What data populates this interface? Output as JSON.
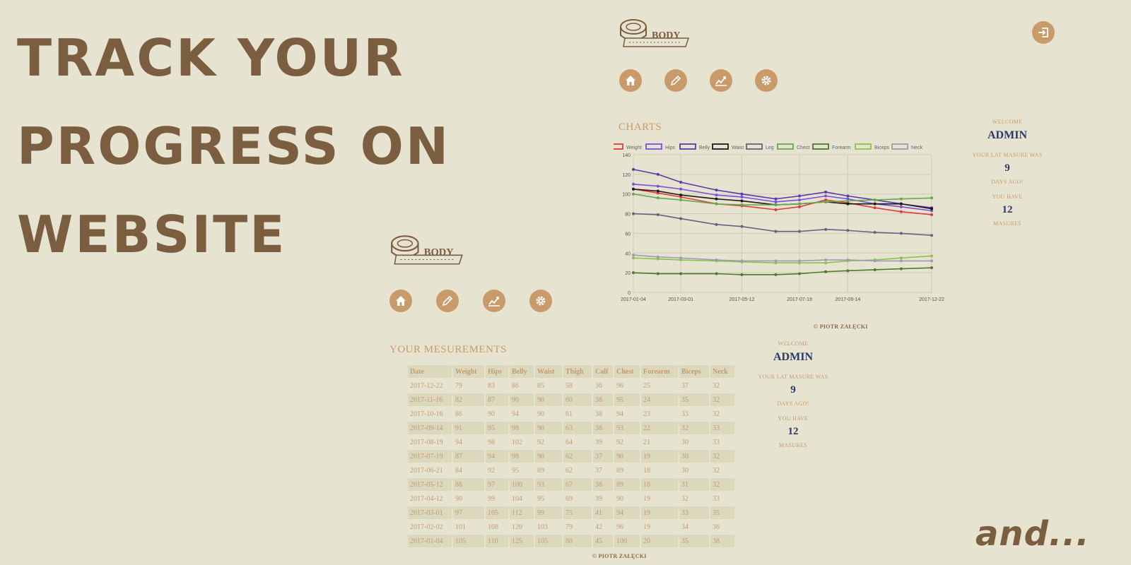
{
  "hero": {
    "line1": "TRACK YOUR",
    "line2": "PROGRESS ON",
    "line3": "WEBSITE",
    "tail": "and..."
  },
  "logo": {
    "word1": "BODY",
    "word2": "MEASURES"
  },
  "nav_icons": [
    "home-icon",
    "pencil-icon",
    "chart-icon",
    "gear-icon"
  ],
  "colors": {
    "accent": "#c99a6a",
    "brand": "#7b5d40",
    "navy": "#2a3a66",
    "background": "#e6e3d0"
  },
  "charts_page": {
    "title": "CHARTS",
    "footer": "© PIOTR ZAŁĘCKI",
    "info": {
      "welcome": "WELCOME",
      "user": "ADMIN",
      "last_label": "YOUR LAT MASURE WAS",
      "last_days": "9",
      "days_label": "DAYS AGO!",
      "have_label": "YOU HAVE",
      "count": "12",
      "count_label": "MASURES"
    }
  },
  "table_page": {
    "title": "YOUR MESUREMENTS",
    "footer": "© PIOTR ZAŁĘCKI",
    "columns": [
      "Date",
      "Weight",
      "Hips",
      "Belly",
      "Waist",
      "Thigh",
      "Calf",
      "Chest",
      "Forearm",
      "Biceps",
      "Neck"
    ],
    "rows": [
      [
        "2017-12-22",
        "79",
        "83",
        "86",
        "85",
        "58",
        "36",
        "96",
        "25",
        "37",
        "32"
      ],
      [
        "2017-11-16",
        "82",
        "87",
        "90",
        "90",
        "60",
        "38",
        "95",
        "24",
        "35",
        "32"
      ],
      [
        "2017-10-16",
        "86",
        "90",
        "94",
        "90",
        "61",
        "38",
        "94",
        "23",
        "33",
        "32"
      ],
      [
        "2017-09-14",
        "91",
        "95",
        "98",
        "90",
        "63",
        "38",
        "93",
        "22",
        "32",
        "33"
      ],
      [
        "2017-08-19",
        "94",
        "98",
        "102",
        "92",
        "64",
        "39",
        "92",
        "21",
        "30",
        "33"
      ],
      [
        "2017-07-19",
        "87",
        "94",
        "98",
        "90",
        "62",
        "37",
        "90",
        "19",
        "30",
        "32"
      ],
      [
        "2017-06-21",
        "84",
        "92",
        "95",
        "89",
        "62",
        "37",
        "89",
        "18",
        "30",
        "32"
      ],
      [
        "2017-05-12",
        "88",
        "97",
        "100",
        "93",
        "67",
        "38",
        "89",
        "18",
        "31",
        "32"
      ],
      [
        "2017-04-12",
        "90",
        "99",
        "104",
        "95",
        "69",
        "39",
        "90",
        "19",
        "32",
        "33"
      ],
      [
        "2017-03-01",
        "97",
        "105",
        "112",
        "99",
        "75",
        "41",
        "94",
        "19",
        "33",
        "35"
      ],
      [
        "2017-02-02",
        "101",
        "108",
        "120",
        "103",
        "79",
        "42",
        "96",
        "19",
        "34",
        "36"
      ],
      [
        "2017-01-04",
        "105",
        "110",
        "125",
        "105",
        "80",
        "45",
        "100",
        "20",
        "35",
        "38"
      ]
    ],
    "info": {
      "welcome": "WELCOME",
      "user": "ADMIN",
      "last_label": "YOUR LAT MASURE WAS",
      "last_days": "9",
      "days_label": "DAYS AGO!",
      "have_label": "YOU HAVE",
      "count": "12",
      "count_label": "MASURES"
    }
  },
  "chart_data": {
    "type": "line",
    "title": "",
    "xlabel": "",
    "ylabel": "",
    "ylim": [
      0,
      140
    ],
    "yticks": [
      "0",
      "20",
      "40",
      "60",
      "80",
      "100",
      "120",
      "140"
    ],
    "x": [
      "2017-01-04",
      "2017-02-02",
      "2017-03-01",
      "2017-04-12",
      "2017-05-12",
      "2017-06-21",
      "2017-07-19",
      "2017-08-19",
      "2017-09-14",
      "2017-10-16",
      "2017-11-16",
      "2017-12-22"
    ],
    "xticks": [
      "2017-01-04",
      "2017-03-01",
      "2017-05-12",
      "2017-07-19",
      "2017-09-14",
      "2017-12-22"
    ],
    "grid": true,
    "legend": "top",
    "series": [
      {
        "name": "Weight",
        "color": "#e03a3a",
        "values": [
          105,
          101,
          97,
          90,
          88,
          84,
          87,
          94,
          91,
          86,
          82,
          79
        ]
      },
      {
        "name": "Hips",
        "color": "#7a4fe0",
        "values": [
          110,
          108,
          105,
          99,
          97,
          92,
          94,
          98,
          95,
          90,
          87,
          83
        ]
      },
      {
        "name": "Belly",
        "color": "#5a3aa8",
        "values": [
          125,
          120,
          112,
          104,
          100,
          95,
          98,
          102,
          98,
          94,
          90,
          86
        ]
      },
      {
        "name": "Waist",
        "color": "#1a1a1a",
        "values": [
          105,
          103,
          99,
          95,
          93,
          89,
          90,
          92,
          90,
          90,
          90,
          85
        ]
      },
      {
        "name": "Leg",
        "color": "#6a6080",
        "values": [
          80,
          79,
          75,
          69,
          67,
          62,
          62,
          64,
          63,
          61,
          60,
          58
        ]
      },
      {
        "name": "Chest",
        "color": "#6aa84f",
        "values": [
          100,
          96,
          94,
          90,
          89,
          89,
          90,
          92,
          93,
          94,
          95,
          96
        ]
      },
      {
        "name": "Forearm",
        "color": "#4e7a2a",
        "values": [
          20,
          19,
          19,
          19,
          18,
          18,
          19,
          21,
          22,
          23,
          24,
          25
        ]
      },
      {
        "name": "Biceps",
        "color": "#8bc34a",
        "values": [
          35,
          34,
          33,
          32,
          31,
          30,
          30,
          30,
          32,
          33,
          35,
          37
        ]
      },
      {
        "name": "Neck",
        "color": "#a09ab8",
        "values": [
          38,
          36,
          35,
          33,
          32,
          32,
          32,
          33,
          33,
          32,
          32,
          32
        ]
      }
    ]
  }
}
